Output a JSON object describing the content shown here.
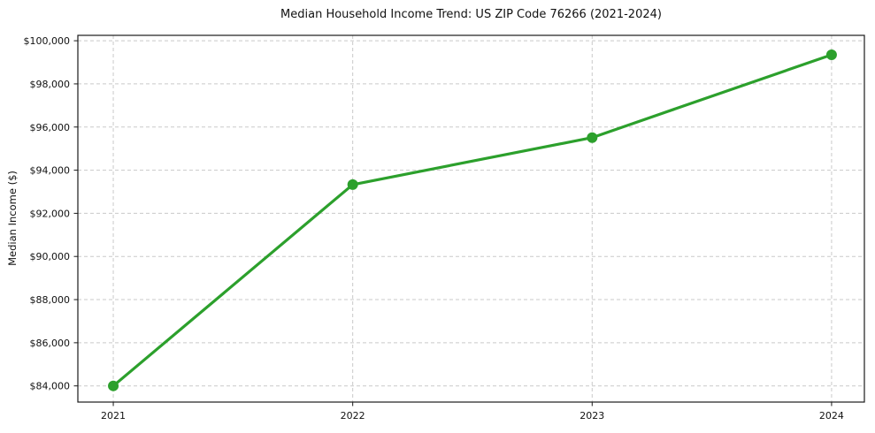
{
  "chart_data": {
    "type": "line",
    "title": "Median Household Income Trend: US ZIP Code 76266 (2021-2024)",
    "xlabel": "",
    "ylabel": "Median Income ($)",
    "x": [
      2021,
      2022,
      2023,
      2024
    ],
    "values": [
      84000,
      93330,
      95510,
      99350
    ],
    "xticks": [
      2021,
      2022,
      2023,
      2024
    ],
    "yticks": [
      84000,
      86000,
      88000,
      90000,
      92000,
      94000,
      96000,
      98000,
      100000
    ],
    "xlim": [
      2020.852,
      2024.137
    ],
    "ylim": [
      83250,
      100250
    ],
    "y_tick_prefix": "$",
    "grid": true,
    "grid_style": "dashed",
    "legend": "none",
    "line_color": "#2ca02c",
    "marker_color": "#2ca02c",
    "grid_color": "#c9c9c9",
    "spine_color": "#1a1a1a",
    "background_color": "#ffffff"
  }
}
